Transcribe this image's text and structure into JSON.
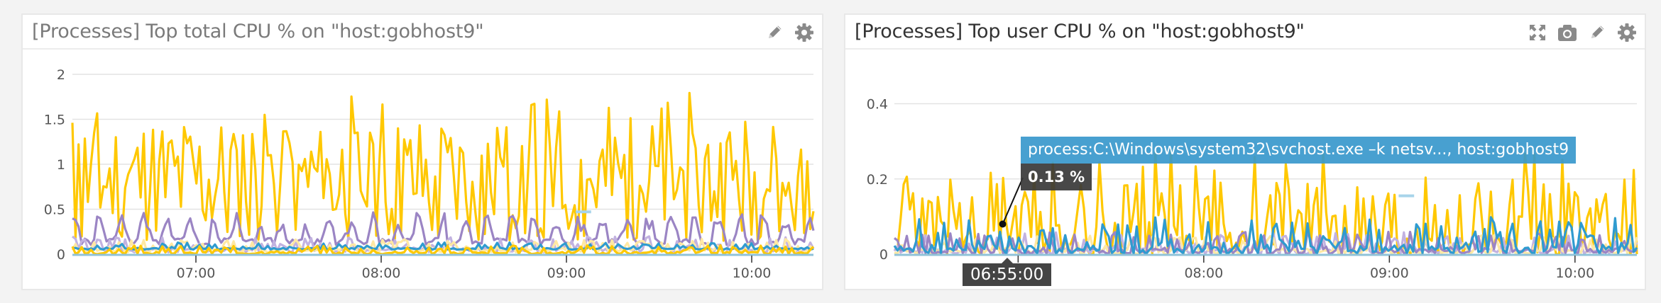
{
  "colors": {
    "yellow": "#ffc800",
    "purple": "#9b85c4",
    "blue": "#2f9bd0",
    "light_yellow": "#ffe8a3",
    "light_purple": "#c2b2e0",
    "baseline": "#8fc2d8",
    "pale_blue": "#a8d4ea",
    "tooltip_bg": "#3898cc",
    "value_bg": "#383838"
  },
  "panels": [
    {
      "id": "total",
      "title": "[Processes] Top total CPU % on \"host:gobhost9\"",
      "icons": [
        "pencil-icon",
        "gear-icon"
      ]
    },
    {
      "id": "user",
      "title": "[Processes] Top user CPU % on \"host:gobhost9\"",
      "icons": [
        "expand-icon",
        "camera-icon",
        "pencil-icon",
        "gear-icon"
      ]
    }
  ],
  "tooltip": {
    "series_label": "process:C:\\Windows\\system32\\svchost.exe –k netsv..., host:gobhost9",
    "value": "0.13 %",
    "time": "06:55:00"
  },
  "chart_data": [
    {
      "type": "line",
      "title": "[Processes] Top total CPU % on \"host:gobhost9\"",
      "xlabel": "",
      "ylabel": "",
      "x_ticks": [
        "07:00",
        "08:00",
        "09:00",
        "10:00"
      ],
      "x_range": [
        "06:20",
        "10:20"
      ],
      "y_ticks": [
        0,
        0.5,
        1,
        1.5,
        2
      ],
      "ylim": [
        0,
        2
      ],
      "grid": true,
      "legend": "none",
      "series": [
        {
          "name": "yellow process",
          "color": "#ffc800",
          "pattern": "spiky",
          "base": 0.75,
          "amp": 0.95,
          "seed": 11
        },
        {
          "name": "purple process",
          "color": "#9b85c4",
          "pattern": "wave",
          "base": 0.18,
          "amp": 0.3,
          "seed": 23
        },
        {
          "name": "light purple process",
          "color": "#c2b2e0",
          "pattern": "noise",
          "base": 0.02,
          "amp": 0.18,
          "seed": 37
        },
        {
          "name": "light yellow process",
          "color": "#ffe8a3",
          "pattern": "noise",
          "base": 0.02,
          "amp": 0.15,
          "seed": 41
        },
        {
          "name": "blue process",
          "color": "#2f9bd0",
          "pattern": "noise",
          "base": 0.05,
          "amp": 0.08,
          "seed": 53
        },
        {
          "name": "yellow low process",
          "color": "#ffc800",
          "pattern": "noise",
          "base": 0.0,
          "amp": 0.1,
          "seed": 67
        }
      ],
      "annotations": [
        {
          "type": "segment",
          "x_from": "09:03",
          "x_to": "09:08",
          "y": 0.47,
          "color": "#a8d4ea"
        }
      ]
    },
    {
      "type": "line",
      "title": "[Processes] Top user CPU % on \"host:gobhost9\"",
      "xlabel": "",
      "ylabel": "",
      "x_ticks": [
        "07:00",
        "08:00",
        "09:00",
        "10:00"
      ],
      "x_range": [
        "06:20",
        "10:20"
      ],
      "y_ticks": [
        0,
        0.2,
        0.4
      ],
      "ylim": [
        0,
        0.48
      ],
      "grid": true,
      "legend": "none",
      "series": [
        {
          "name": "yellow process",
          "color": "#ffc800",
          "pattern": "spiky",
          "base": 0.06,
          "amp": 0.2,
          "seed": 71
        },
        {
          "name": "light purple process",
          "color": "#c2b2e0",
          "pattern": "noise",
          "base": 0.0,
          "amp": 0.06,
          "seed": 83
        },
        {
          "name": "light yellow process",
          "color": "#ffe8a3",
          "pattern": "noise",
          "base": 0.0,
          "amp": 0.05,
          "seed": 89
        },
        {
          "name": "purple process",
          "color": "#9b85c4",
          "pattern": "noise",
          "base": 0.0,
          "amp": 0.06,
          "seed": 97
        },
        {
          "name": "svchost.exe -k netsv...",
          "color": "#2f9bd0",
          "pattern": "noise",
          "base": 0.0,
          "amp": 0.1,
          "seed": 101
        }
      ],
      "annotations": [
        {
          "type": "segment",
          "x_from": "09:03",
          "x_to": "09:08",
          "y": 0.155,
          "color": "#a8d4ea"
        },
        {
          "type": "hover",
          "x": "06:55:00",
          "series": "svchost.exe -k netsv...",
          "value": 0.13
        }
      ]
    }
  ]
}
